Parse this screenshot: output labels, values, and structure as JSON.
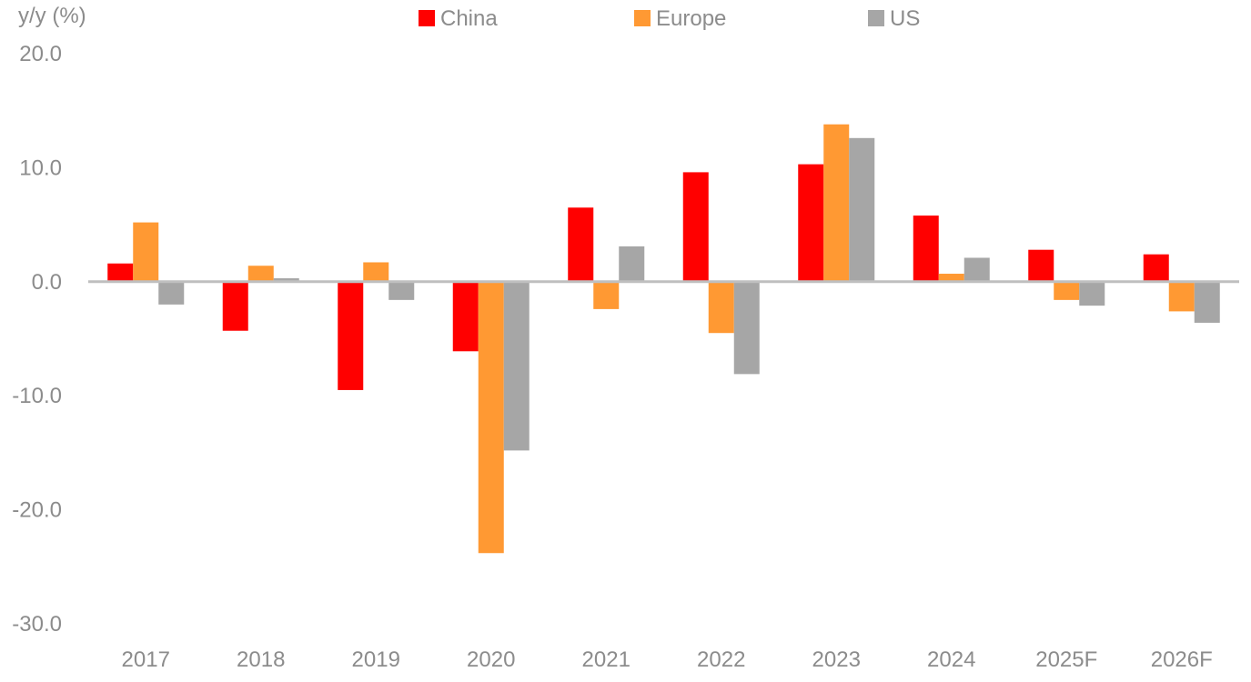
{
  "chart_data": {
    "type": "bar",
    "title": "",
    "ylabel": "y/y (%)",
    "xlabel": "",
    "categories": [
      "2017",
      "2018",
      "2019",
      "2020",
      "2021",
      "2022",
      "2023",
      "2024",
      "2025F",
      "2026F"
    ],
    "series": [
      {
        "name": "China",
        "color": "#ff0000",
        "values": [
          1.6,
          -4.3,
          -9.5,
          -6.1,
          6.5,
          9.6,
          10.3,
          5.8,
          2.8,
          2.4
        ]
      },
      {
        "name": "Europe",
        "color": "#ff9933",
        "values": [
          5.2,
          1.4,
          1.7,
          -23.8,
          -2.4,
          -4.5,
          13.8,
          0.7,
          -1.6,
          -2.6
        ]
      },
      {
        "name": "US",
        "color": "#a6a6a6",
        "values": [
          -2.0,
          0.3,
          -1.6,
          -14.8,
          3.1,
          -8.1,
          12.6,
          2.1,
          -2.1,
          -3.6
        ]
      }
    ],
    "ylim": [
      -30,
      20
    ],
    "yticks": [
      "20.0",
      "10.0",
      "0.0",
      "-10.0",
      "-20.0",
      "-30.0"
    ],
    "grid": false,
    "legend_position": "top-center",
    "zero_line_color": "#bfbfbf",
    "axis_text_color": "#8c8c8c"
  }
}
